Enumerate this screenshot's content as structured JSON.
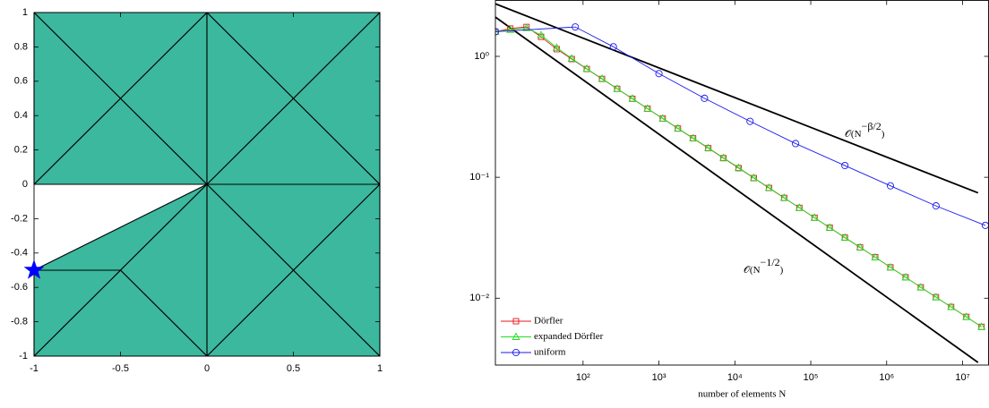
{
  "chart_data": [
    {
      "type": "mesh",
      "xlim": [
        -1,
        1
      ],
      "ylim": [
        -1,
        1
      ],
      "xticks": [
        -1,
        -0.5,
        0,
        0.5,
        1
      ],
      "yticks": [
        -1,
        -0.8,
        -0.6,
        -0.4,
        -0.2,
        0,
        0.2,
        0.4,
        0.6,
        0.8,
        1
      ],
      "color": "#3bb89e",
      "edge_color": "#000000",
      "triangles": [
        [
          [
            -1,
            0
          ],
          [
            0,
            0
          ],
          [
            -0.5,
            0.5
          ]
        ],
        [
          [
            0,
            0
          ],
          [
            0,
            1
          ],
          [
            -0.5,
            0.5
          ]
        ],
        [
          [
            0,
            1
          ],
          [
            -1,
            1
          ],
          [
            -0.5,
            0.5
          ]
        ],
        [
          [
            -1,
            1
          ],
          [
            -1,
            0
          ],
          [
            -0.5,
            0.5
          ]
        ],
        [
          [
            0,
            0
          ],
          [
            1,
            0
          ],
          [
            0.5,
            0.5
          ]
        ],
        [
          [
            1,
            0
          ],
          [
            1,
            1
          ],
          [
            0.5,
            0.5
          ]
        ],
        [
          [
            1,
            1
          ],
          [
            0,
            1
          ],
          [
            0.5,
            0.5
          ]
        ],
        [
          [
            0,
            1
          ],
          [
            0,
            0
          ],
          [
            0.5,
            0.5
          ]
        ],
        [
          [
            0,
            -1
          ],
          [
            1,
            -1
          ],
          [
            0.5,
            -0.5
          ]
        ],
        [
          [
            1,
            -1
          ],
          [
            1,
            0
          ],
          [
            0.5,
            -0.5
          ]
        ],
        [
          [
            1,
            0
          ],
          [
            0,
            0
          ],
          [
            0.5,
            -0.5
          ]
        ],
        [
          [
            0,
            0
          ],
          [
            0,
            -1
          ],
          [
            0.5,
            -0.5
          ]
        ],
        [
          [
            -1,
            -0.5
          ],
          [
            0,
            0
          ],
          [
            -0.5,
            -0.5
          ]
        ],
        [
          [
            -0.5,
            -0.5
          ],
          [
            0,
            0
          ],
          [
            0,
            -1
          ]
        ],
        [
          [
            -1,
            -1
          ],
          [
            -0.5,
            -0.5
          ],
          [
            0,
            -1
          ]
        ],
        [
          [
            -1,
            -1
          ],
          [
            -1,
            -0.5
          ],
          [
            -0.5,
            -0.5
          ]
        ]
      ],
      "marker": {
        "x": -1,
        "y": -0.5,
        "color": "#0000ff",
        "shape": "star"
      }
    },
    {
      "type": "line",
      "xscale": "log",
      "yscale": "log",
      "xlabel": "number of elements N",
      "xlim": [
        7,
        22000000
      ],
      "ylim": [
        0.0028,
        2.9
      ],
      "xticks": [
        {
          "value": 100,
          "label": "10²"
        },
        {
          "value": 1000,
          "label": "10³"
        },
        {
          "value": 10000,
          "label": "10⁴"
        },
        {
          "value": 100000,
          "label": "10⁵"
        },
        {
          "value": 1000000,
          "label": "10⁶"
        },
        {
          "value": 10000000,
          "label": "10⁷"
        }
      ],
      "yticks": [
        {
          "value": 0.01,
          "label": "10⁻²"
        },
        {
          "value": 0.1,
          "label": "10⁻¹"
        },
        {
          "value": 1,
          "label": "10⁰"
        }
      ],
      "legend": "lower left",
      "series": [
        {
          "name": "Dörfler",
          "color": "#e8141a",
          "marker": "square",
          "x": [
            7,
            11,
            18,
            28,
            45,
            71,
            112,
            178,
            282,
            447,
            708,
            1122,
            1778,
            2818,
            4467,
            7079,
            11220,
            17783,
            28184,
            44668,
            70795,
            112202,
            177828,
            281838,
            446684,
            707946,
            1122018,
            1778279,
            2818383,
            4466836,
            7079458,
            11220185,
            17782794
          ],
          "values": [
            1.6,
            1.7,
            1.75,
            1.45,
            1.147,
            0.95,
            0.786,
            0.651,
            0.539,
            0.446,
            0.369,
            0.306,
            0.253,
            0.21,
            0.174,
            0.144,
            0.119,
            0.0985,
            0.0816,
            0.0675,
            0.0559,
            0.0463,
            0.0383,
            0.0317,
            0.0263,
            0.0218,
            0.018,
            0.0149,
            0.0123,
            0.0102,
            0.00846,
            0.00701,
            0.0058
          ]
        },
        {
          "name": "expanded Dörfler",
          "color": "#22dd22",
          "marker": "triangle",
          "x": [
            7,
            11,
            18,
            28,
            45,
            71,
            112,
            178,
            282,
            447,
            708,
            1122,
            1778,
            2818,
            4467,
            7079,
            11220,
            17783,
            28184,
            44668,
            70795,
            112202,
            177828,
            281838,
            446684,
            707946,
            1122018,
            1778279,
            2818383,
            4466836,
            7079458,
            11220185,
            17782794
          ],
          "values": [
            1.6,
            1.66,
            1.72,
            1.5,
            1.18,
            0.96,
            0.79,
            0.655,
            0.54,
            0.448,
            0.37,
            0.307,
            0.254,
            0.211,
            0.175,
            0.145,
            0.12,
            0.099,
            0.082,
            0.0678,
            0.056,
            0.0464,
            0.0384,
            0.0318,
            0.0264,
            0.0218,
            0.018,
            0.0149,
            0.0123,
            0.0102,
            0.00846,
            0.00701,
            0.0058
          ]
        },
        {
          "name": "uniform",
          "color": "#1a1aee",
          "marker": "circle",
          "x": [
            7,
            79,
            251,
            1000,
            3981,
            15849,
            63096,
            281838,
            1122018,
            4466836,
            19952623
          ],
          "values": [
            1.6,
            1.75,
            1.2,
            0.72,
            0.45,
            0.29,
            0.19,
            0.125,
            0.085,
            0.058,
            0.04
          ]
        }
      ],
      "reference_lines": [
        {
          "label": [
            "𝒪(N",
            "−β/2",
            ")"
          ],
          "color": "#000000",
          "x": [
            7,
            16000000
          ],
          "values": [
            2.72,
            0.0743
          ]
        },
        {
          "label": [
            "𝒪(N",
            "−1/2",
            ")"
          ],
          "color": "#000000",
          "x": [
            7,
            16000000
          ],
          "values": [
            2.11,
            0.00294
          ]
        }
      ]
    }
  ]
}
